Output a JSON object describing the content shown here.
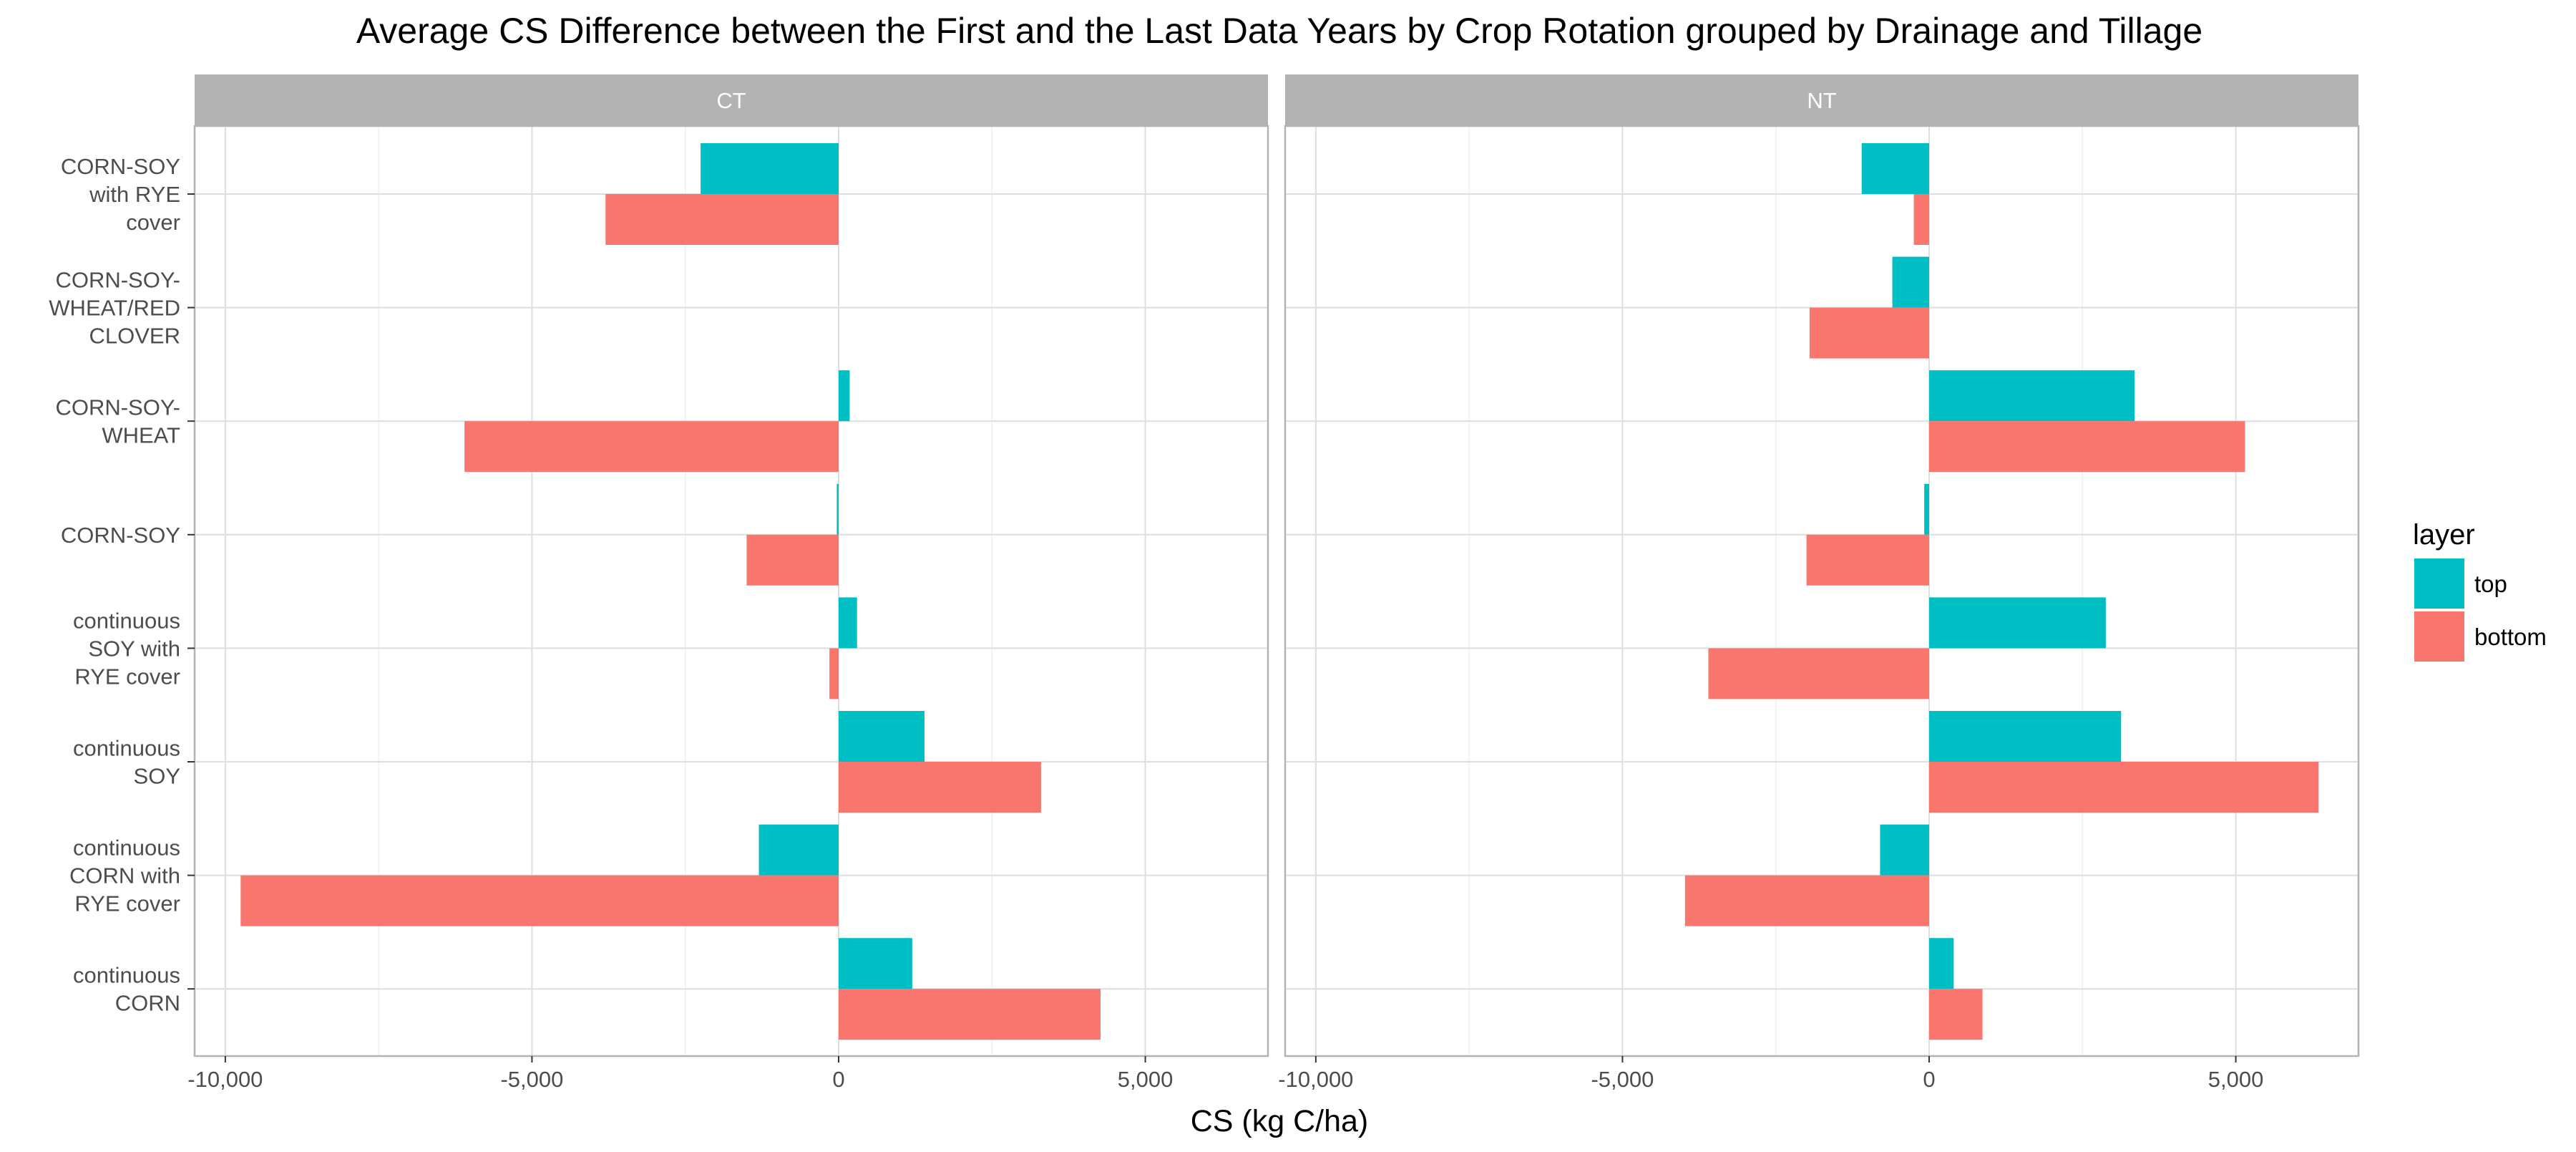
{
  "chart_data": {
    "type": "bar",
    "orientation": "horizontal",
    "title": "Average CS Difference between the First and the Last Data Years by Crop Rotation grouped by Drainage and Tillage",
    "xlabel": "CS (kg C/ha)",
    "ylabel": "",
    "xlim": [
      -10500,
      7000
    ],
    "xticks": [
      -10000,
      -5000,
      0,
      5000
    ],
    "xtick_labels": [
      "-10,000",
      "-5,000",
      "0",
      "5,000"
    ],
    "grid": true,
    "legend": {
      "title": "layer",
      "position": "right",
      "entries": [
        {
          "label": "top",
          "color": "#00BFC4"
        },
        {
          "label": "bottom",
          "color": "#F8766D"
        }
      ]
    },
    "categories": [
      {
        "lines": [
          "CORN-SOY",
          "with RYE",
          "cover"
        ]
      },
      {
        "lines": [
          "CORN-SOY-",
          "WHEAT/RED",
          "CLOVER"
        ]
      },
      {
        "lines": [
          "CORN-SOY-",
          "WHEAT"
        ]
      },
      {
        "lines": [
          "CORN-SOY"
        ]
      },
      {
        "lines": [
          "continuous",
          "SOY with",
          "RYE cover"
        ]
      },
      {
        "lines": [
          "continuous",
          "SOY"
        ]
      },
      {
        "lines": [
          "continuous",
          "CORN with",
          "RYE cover"
        ]
      },
      {
        "lines": [
          "continuous",
          "CORN"
        ]
      }
    ],
    "facets": [
      {
        "label": "CT",
        "series": [
          {
            "name": "top",
            "color": "#00BFC4",
            "values": [
              -2250,
              null,
              180,
              -30,
              300,
              1400,
              -1300,
              1200
            ]
          },
          {
            "name": "bottom",
            "color": "#F8766D",
            "values": [
              -3800,
              null,
              -6100,
              -1500,
              -150,
              3300,
              -9750,
              4270
            ]
          }
        ]
      },
      {
        "label": "NT",
        "series": [
          {
            "name": "top",
            "color": "#00BFC4",
            "values": [
              -1100,
              -600,
              3350,
              -80,
              2880,
              3130,
              -800,
              400
            ]
          },
          {
            "name": "bottom",
            "color": "#F8766D",
            "values": [
              -250,
              -1950,
              5150,
              -2000,
              -3600,
              6350,
              -3980,
              870
            ]
          }
        ]
      }
    ]
  }
}
